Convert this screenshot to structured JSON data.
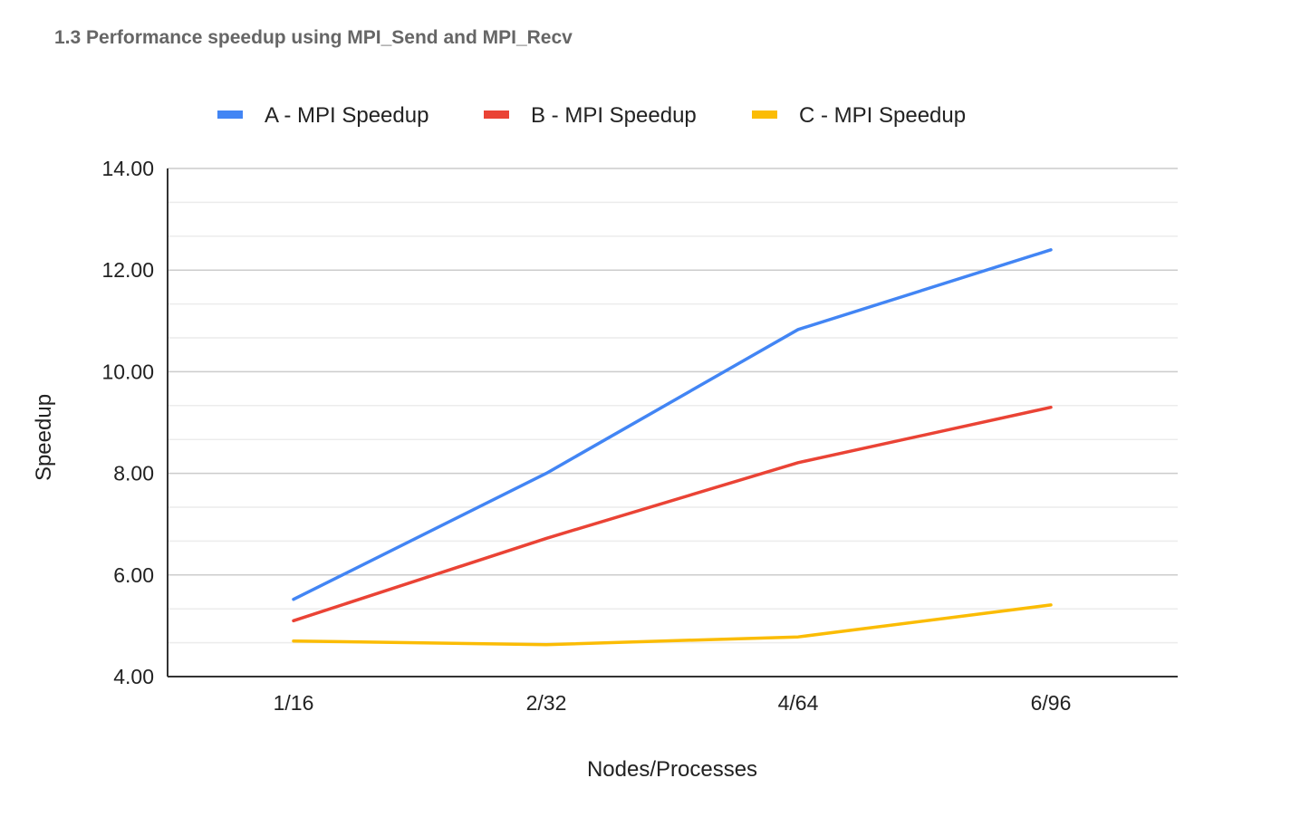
{
  "page": {
    "heading": "1.3 Performance speedup using MPI_Send and MPI_Recv"
  },
  "chart_data": {
    "type": "line",
    "title": "",
    "xlabel": "Nodes/Processes",
    "ylabel": "Speedup",
    "categories": [
      "1/16",
      "2/32",
      "4/64",
      "6/96"
    ],
    "ylim": [
      4,
      14
    ],
    "yticks": [
      4,
      6,
      8,
      10,
      12,
      14
    ],
    "ytick_labels": [
      "4.00",
      "6.00",
      "8.00",
      "10.00",
      "12.00",
      "14.00"
    ],
    "minor_gridlines": true,
    "grid": true,
    "legend_position": "top",
    "series": [
      {
        "name": "A - MPI Speedup",
        "color": "#4285F4",
        "values": [
          5.52,
          8.0,
          10.83,
          12.4
        ]
      },
      {
        "name": "B - MPI Speedup",
        "color": "#EA4335",
        "values": [
          5.1,
          6.72,
          8.21,
          9.3
        ]
      },
      {
        "name": "C - MPI Speedup",
        "color": "#FBBC04",
        "values": [
          4.7,
          4.63,
          4.78,
          5.41
        ]
      }
    ]
  }
}
